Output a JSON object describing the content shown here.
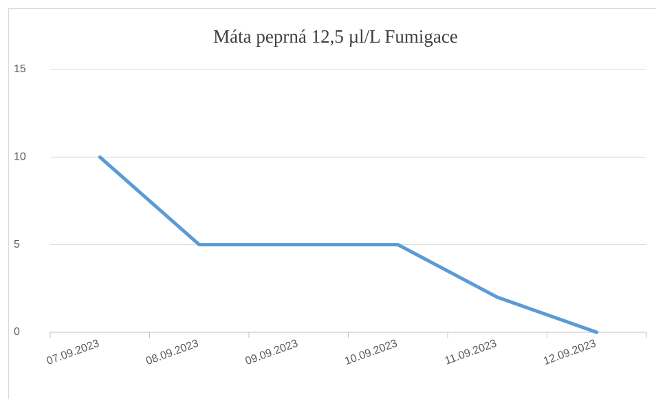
{
  "chart_data": {
    "type": "line",
    "title": "Máta peprná 12,5 µl/L Fumigace",
    "categories": [
      "07.09.2023",
      "08.09.2023",
      "09.09.2023",
      "10.09.2023",
      "11.09.2023",
      "12.09.2023"
    ],
    "series": [
      {
        "name": "Máta peprná 12,5 µl/L Fumigace",
        "color": "#5b9bd5",
        "values": [
          10,
          5,
          5,
          5,
          2,
          0
        ]
      }
    ],
    "ylim": [
      0,
      15
    ],
    "yticks": [
      0,
      5,
      10,
      15
    ],
    "grid": true
  }
}
